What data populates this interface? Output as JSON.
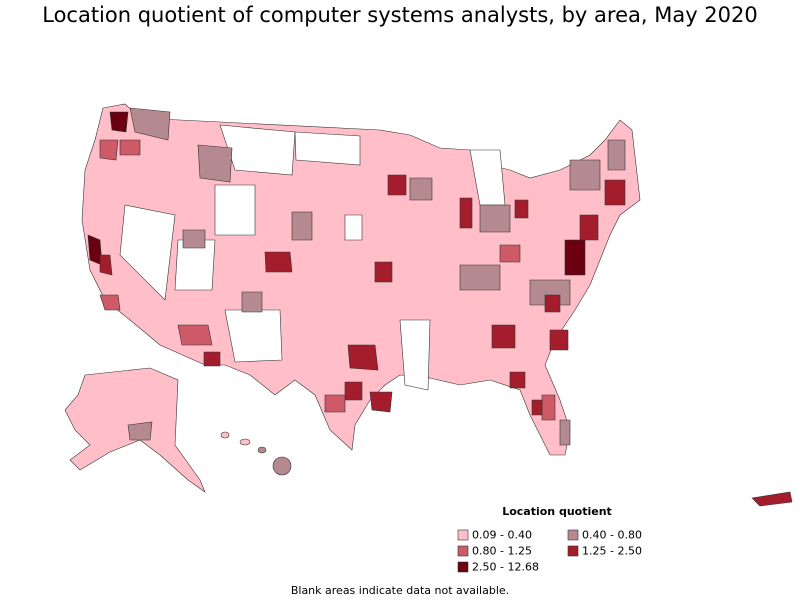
{
  "title": "Location quotient of computer systems analysts, by area, May 2020",
  "legend": {
    "title": "Location quotient",
    "items": [
      {
        "label": "0.09 - 0.40",
        "color": "#ffbec8"
      },
      {
        "label": "0.40 - 0.80",
        "color": "#b48a90"
      },
      {
        "label": "0.80 - 1.25",
        "color": "#cd5a66"
      },
      {
        "label": "1.25 - 2.50",
        "color": "#a41d2c"
      },
      {
        "label": "2.50 - 12.68",
        "color": "#6a0010"
      }
    ]
  },
  "footnote": "Blank areas indicate data not available."
}
